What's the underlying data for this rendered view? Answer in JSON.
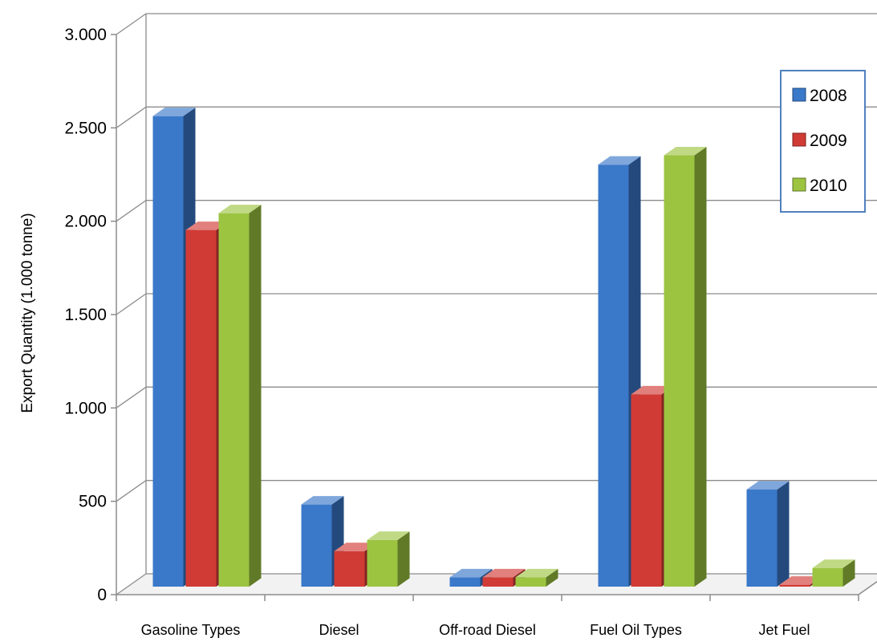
{
  "chart_data": {
    "type": "bar",
    "style": "3d-clustered-column",
    "categories": [
      "Gasoline Types",
      "Diesel",
      "Off-road Diesel",
      "Fuel Oil Types",
      "Jet Fuel"
    ],
    "series": [
      {
        "name": "2008",
        "color": "#3a78c9",
        "values": [
          2520,
          440,
          50,
          2260,
          520
        ]
      },
      {
        "name": "2009",
        "color": "#d13b35",
        "values": [
          1910,
          190,
          50,
          1030,
          10
        ]
      },
      {
        "name": "2010",
        "color": "#9cc441",
        "values": [
          2000,
          250,
          50,
          2310,
          100
        ]
      }
    ],
    "ylabel": "Export Quantity (1.000 tonne)",
    "xlabel": "",
    "ylim": [
      0,
      3000
    ],
    "yticks": [
      0,
      500,
      1000,
      1500,
      2000,
      2500,
      3000
    ],
    "ytick_labels": [
      "0",
      "500",
      "1.000",
      "1.500",
      "2.000",
      "2.500",
      "3.000"
    ],
    "grid": true,
    "legend_position": "top-right"
  }
}
